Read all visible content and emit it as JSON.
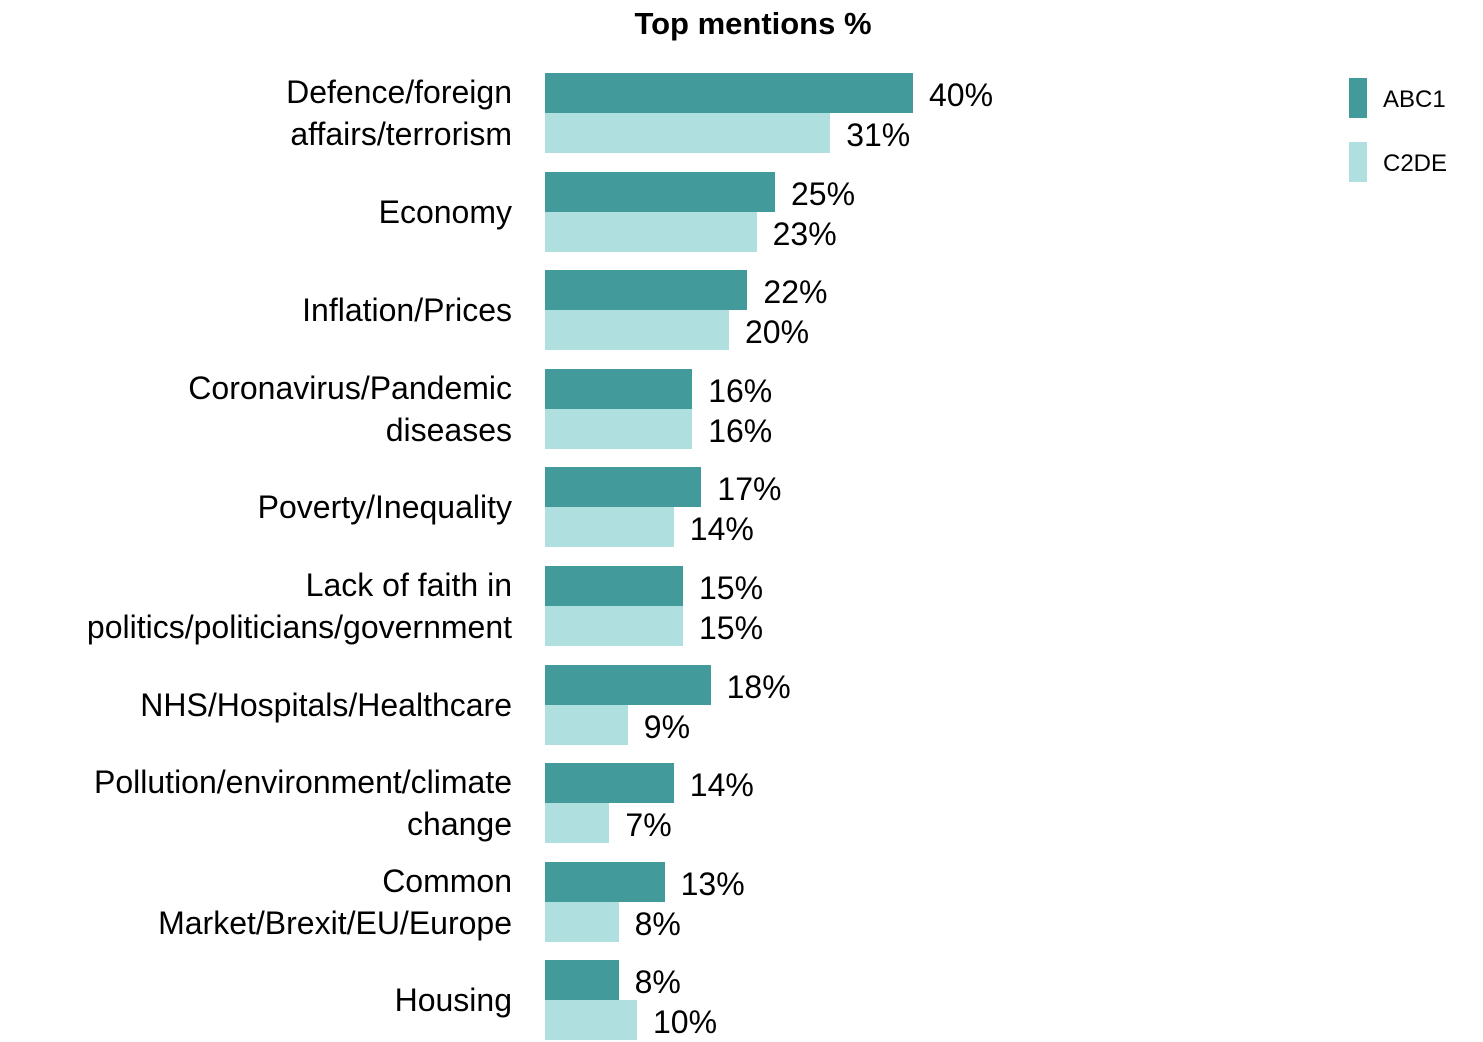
{
  "chart_data": {
    "type": "bar",
    "orientation": "horizontal",
    "title": "Top mentions %",
    "categories": [
      "Defence/foreign\naffairs/terrorism",
      "Economy",
      "Inflation/Prices",
      "Coronavirus/Pandemic\ndiseases",
      "Poverty/Inequality",
      "Lack of faith in\npolitics/politicians/government",
      "NHS/Hospitals/Healthcare",
      "Pollution/environment/climate\nchange",
      "Common\nMarket/Brexit/EU/Europe",
      "Housing"
    ],
    "series": [
      {
        "name": "ABC1",
        "color": "#429a9a",
        "values": [
          40,
          25,
          22,
          16,
          17,
          15,
          18,
          14,
          13,
          8
        ],
        "value_labels": [
          "40%",
          "25%",
          "22%",
          "16%",
          "17%",
          "15%",
          "18%",
          "14%",
          "13%",
          "8%"
        ]
      },
      {
        "name": "C2DE",
        "color": "#b0dfdf",
        "values": [
          31,
          23,
          20,
          16,
          14,
          15,
          9,
          7,
          8,
          10
        ],
        "value_labels": [
          "31%",
          "23%",
          "20%",
          "16%",
          "14%",
          "15%",
          "9%",
          "7%",
          "8%",
          "10%"
        ]
      }
    ],
    "legend": "top-right"
  }
}
